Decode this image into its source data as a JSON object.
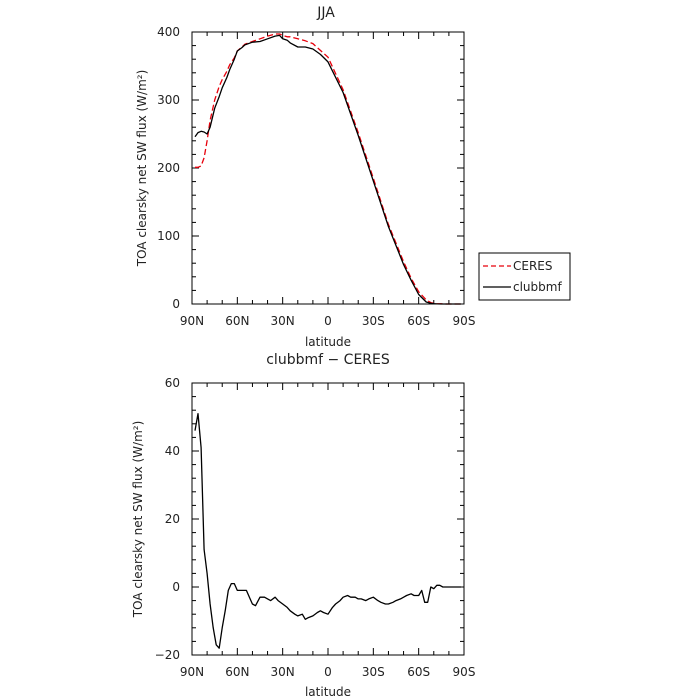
{
  "chart_data": [
    {
      "type": "line",
      "title": "JJA",
      "xlabel": "latitude",
      "ylabel": "TOA clearsky net SW flux (W/m²)",
      "xlim": [
        90,
        -90
      ],
      "ylim": [
        0,
        400
      ],
      "x_tick_values": [
        90,
        60,
        30,
        0,
        -30,
        -60,
        -90
      ],
      "x_tick_labels": [
        "90N",
        "60N",
        "30N",
        "0",
        "30S",
        "60S",
        "90S"
      ],
      "y_tick_values": [
        0,
        100,
        200,
        300,
        400
      ],
      "y_tick_labels": [
        "0",
        "100",
        "200",
        "300",
        "400"
      ],
      "legend": {
        "placement": "right-outside",
        "entries": [
          "CERES",
          "clubbmf"
        ]
      },
      "series": [
        {
          "name": "CERES",
          "color": "#e8000b",
          "dash": "dashed",
          "x": [
            88,
            86,
            84,
            82,
            80,
            78,
            75,
            72,
            70,
            67,
            65,
            62,
            60,
            57,
            55,
            50,
            45,
            40,
            35,
            32,
            30,
            27,
            25,
            20,
            15,
            10,
            5,
            0,
            -10,
            -20,
            -30,
            -40,
            -50,
            -55,
            -60,
            -65,
            -68,
            -70,
            -72,
            -75,
            -78,
            -80,
            -82,
            -85,
            -88
          ],
          "y": [
            201,
            201,
            203,
            215,
            240,
            270,
            300,
            320,
            330,
            342,
            352,
            362,
            372,
            378,
            382,
            386,
            390,
            394,
            397,
            397,
            395,
            393,
            393,
            390,
            387,
            383,
            373,
            363,
            315,
            252,
            185,
            117,
            62,
            38,
            18,
            6,
            2,
            1,
            0.5,
            0.3,
            0,
            0,
            0,
            0,
            0
          ]
        },
        {
          "name": "clubbmf",
          "color": "#000000",
          "dash": "solid",
          "x": [
            88,
            86,
            84,
            82,
            80,
            78,
            75,
            72,
            70,
            67,
            65,
            62,
            60,
            57,
            55,
            50,
            45,
            40,
            35,
            32,
            30,
            27,
            25,
            20,
            15,
            10,
            5,
            0,
            -10,
            -20,
            -30,
            -40,
            -50,
            -55,
            -60,
            -65,
            -68,
            -70,
            -72,
            -75,
            -78,
            -80,
            -82,
            -85,
            -88
          ],
          "y": [
            246,
            252,
            254,
            253,
            250,
            260,
            288,
            305,
            318,
            333,
            345,
            360,
            372,
            377,
            381,
            385,
            386,
            390,
            394,
            395,
            390,
            388,
            384,
            378,
            378,
            375,
            367,
            356,
            311,
            248,
            181,
            114,
            58,
            35,
            14,
            3,
            1,
            0.5,
            0.2,
            0,
            0,
            0,
            0,
            0,
            0
          ]
        }
      ]
    },
    {
      "type": "line",
      "title": "clubbmf − CERES",
      "xlabel": "latitude",
      "ylabel": "TOA clearsky net SW flux (W/m²)",
      "xlim": [
        90,
        -90
      ],
      "ylim": [
        -20,
        60
      ],
      "x_tick_values": [
        90,
        60,
        30,
        0,
        -30,
        -60,
        -90
      ],
      "x_tick_labels": [
        "90N",
        "60N",
        "30N",
        "0",
        "30S",
        "60S",
        "90S"
      ],
      "y_tick_values": [
        -20,
        0,
        20,
        40,
        60
      ],
      "y_tick_labels": [
        "−20",
        "0",
        "20",
        "40",
        "60"
      ],
      "series": [
        {
          "color": "#000000",
          "dash": "solid",
          "x": [
            88,
            86,
            84,
            82,
            80,
            78,
            76,
            74,
            72,
            70,
            68,
            66,
            64,
            62,
            60,
            58,
            56,
            54,
            52,
            50,
            48,
            45,
            42,
            40,
            38,
            35,
            33,
            30,
            27,
            25,
            22,
            20,
            17,
            15,
            13,
            10,
            7,
            5,
            3,
            0,
            -3,
            -5,
            -8,
            -10,
            -13,
            -15,
            -18,
            -20,
            -22,
            -25,
            -27,
            -30,
            -33,
            -35,
            -38,
            -40,
            -43,
            -45,
            -48,
            -50,
            -52,
            -55,
            -57,
            -60,
            -62,
            -64,
            -66,
            -68,
            -70,
            -72,
            -74,
            -76,
            -78,
            -80,
            -83,
            -85,
            -88
          ],
          "y": [
            46,
            51,
            41,
            11,
            4,
            -5,
            -12,
            -17,
            -18,
            -12,
            -7,
            -1,
            1,
            1,
            -1,
            -1,
            -1,
            -1,
            -3,
            -5,
            -5.5,
            -3,
            -3,
            -3.5,
            -4,
            -3,
            -4,
            -5,
            -6,
            -7,
            -8,
            -8.5,
            -8,
            -9.5,
            -9,
            -8.5,
            -7.5,
            -7,
            -7.5,
            -8,
            -6,
            -5,
            -4,
            -3,
            -2.5,
            -3,
            -3,
            -3.5,
            -3.5,
            -4,
            -3.5,
            -3,
            -4,
            -4.5,
            -5,
            -5,
            -4.5,
            -4,
            -3.5,
            -3,
            -2.5,
            -2,
            -2.5,
            -2.5,
            -1,
            -4.5,
            -4.5,
            0,
            -0.5,
            0.5,
            0.5,
            0,
            0,
            0,
            0,
            0,
            0
          ]
        }
      ]
    }
  ]
}
